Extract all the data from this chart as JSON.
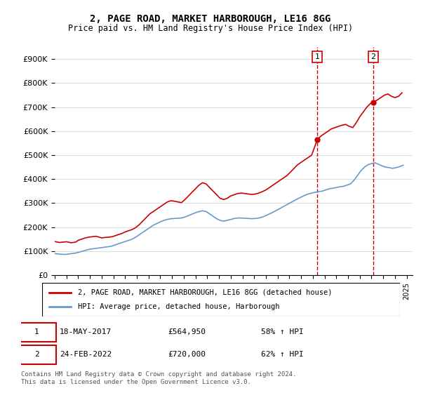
{
  "title": "2, PAGE ROAD, MARKET HARBOROUGH, LE16 8GG",
  "subtitle": "Price paid vs. HM Land Registry's House Price Index (HPI)",
  "legend_line1": "2, PAGE ROAD, MARKET HARBOROUGH, LE16 8GG (detached house)",
  "legend_line2": "HPI: Average price, detached house, Harborough",
  "footnote": "Contains HM Land Registry data © Crown copyright and database right 2024.\nThis data is licensed under the Open Government Licence v3.0.",
  "annotation1_label": "1",
  "annotation1_date": "18-MAY-2017",
  "annotation1_price": "£564,950",
  "annotation1_hpi": "58% ↑ HPI",
  "annotation2_label": "2",
  "annotation2_date": "24-FEB-2022",
  "annotation2_price": "£720,000",
  "annotation2_hpi": "62% ↑ HPI",
  "red_color": "#cc0000",
  "blue_color": "#6699cc",
  "vline_color": "#cc0000",
  "background_color": "#ffffff",
  "grid_color": "#dddddd",
  "ylim": [
    0,
    950000
  ],
  "yticks": [
    0,
    100000,
    200000,
    300000,
    400000,
    500000,
    600000,
    700000,
    800000,
    900000
  ],
  "ytick_labels": [
    "£0",
    "£100K",
    "£200K",
    "£300K",
    "£400K",
    "£500K",
    "£600K",
    "£700K",
    "£800K",
    "£900K"
  ],
  "xlim_start": 1995.0,
  "xlim_end": 2025.5,
  "vline1_x": 2017.38,
  "vline2_x": 2022.15,
  "red_x": [
    1995.0,
    1995.2,
    1995.4,
    1995.6,
    1995.8,
    1996.0,
    1996.2,
    1996.4,
    1996.6,
    1996.8,
    1997.0,
    1997.3,
    1997.6,
    1997.9,
    1998.2,
    1998.5,
    1998.8,
    1999.0,
    1999.3,
    1999.6,
    1999.9,
    2000.2,
    2000.5,
    2000.8,
    2001.0,
    2001.3,
    2001.6,
    2001.9,
    2002.2,
    2002.5,
    2002.8,
    2003.1,
    2003.4,
    2003.7,
    2004.0,
    2004.3,
    2004.6,
    2004.9,
    2005.2,
    2005.5,
    2005.8,
    2006.1,
    2006.4,
    2006.7,
    2007.0,
    2007.3,
    2007.6,
    2007.9,
    2008.2,
    2008.5,
    2008.8,
    2009.1,
    2009.4,
    2009.7,
    2010.0,
    2010.3,
    2010.6,
    2010.9,
    2011.2,
    2011.5,
    2011.8,
    2012.1,
    2012.4,
    2012.7,
    2013.0,
    2013.3,
    2013.6,
    2013.9,
    2014.2,
    2014.5,
    2014.8,
    2015.1,
    2015.4,
    2015.7,
    2016.0,
    2016.3,
    2016.6,
    2016.9,
    2017.38,
    2017.7,
    2018.0,
    2018.3,
    2018.6,
    2018.9,
    2019.2,
    2019.5,
    2019.8,
    2020.1,
    2020.4,
    2020.7,
    2021.0,
    2021.3,
    2021.6,
    2021.9,
    2022.15,
    2022.5,
    2022.8,
    2023.1,
    2023.4,
    2023.7,
    2024.0,
    2024.3,
    2024.6
  ],
  "red_y": [
    140000,
    138000,
    136000,
    137000,
    138000,
    139000,
    137000,
    135000,
    136000,
    138000,
    145000,
    150000,
    155000,
    158000,
    160000,
    162000,
    158000,
    155000,
    157000,
    158000,
    160000,
    165000,
    170000,
    175000,
    180000,
    185000,
    190000,
    198000,
    210000,
    225000,
    240000,
    255000,
    265000,
    275000,
    285000,
    295000,
    305000,
    310000,
    308000,
    305000,
    302000,
    315000,
    330000,
    345000,
    360000,
    375000,
    385000,
    380000,
    365000,
    350000,
    335000,
    320000,
    315000,
    320000,
    330000,
    335000,
    340000,
    342000,
    340000,
    338000,
    336000,
    338000,
    342000,
    348000,
    355000,
    365000,
    375000,
    385000,
    395000,
    405000,
    415000,
    430000,
    445000,
    460000,
    470000,
    480000,
    490000,
    500000,
    564950,
    580000,
    590000,
    600000,
    610000,
    615000,
    620000,
    625000,
    628000,
    620000,
    615000,
    635000,
    660000,
    680000,
    700000,
    715000,
    720000,
    730000,
    740000,
    750000,
    755000,
    745000,
    740000,
    745000,
    760000
  ],
  "blue_x": [
    1995.0,
    1995.3,
    1995.6,
    1995.9,
    1996.2,
    1996.5,
    1996.8,
    1997.1,
    1997.4,
    1997.7,
    1998.0,
    1998.3,
    1998.6,
    1998.9,
    1999.2,
    1999.5,
    1999.8,
    2000.1,
    2000.4,
    2000.7,
    2001.0,
    2001.3,
    2001.6,
    2001.9,
    2002.2,
    2002.5,
    2002.8,
    2003.1,
    2003.4,
    2003.7,
    2004.0,
    2004.3,
    2004.6,
    2004.9,
    2005.2,
    2005.5,
    2005.8,
    2006.1,
    2006.4,
    2006.7,
    2007.0,
    2007.3,
    2007.6,
    2007.9,
    2008.2,
    2008.5,
    2008.8,
    2009.1,
    2009.4,
    2009.7,
    2010.0,
    2010.3,
    2010.6,
    2010.9,
    2011.2,
    2011.5,
    2011.8,
    2012.1,
    2012.4,
    2012.7,
    2013.0,
    2013.3,
    2013.6,
    2013.9,
    2014.2,
    2014.5,
    2014.8,
    2015.1,
    2015.4,
    2015.7,
    2016.0,
    2016.3,
    2016.6,
    2016.9,
    2017.2,
    2017.5,
    2017.8,
    2018.1,
    2018.4,
    2018.7,
    2019.0,
    2019.3,
    2019.6,
    2019.9,
    2020.2,
    2020.5,
    2020.8,
    2021.1,
    2021.4,
    2021.7,
    2022.0,
    2022.3,
    2022.6,
    2022.9,
    2023.2,
    2023.5,
    2023.8,
    2024.1,
    2024.4,
    2024.7
  ],
  "blue_y": [
    90000,
    88000,
    87000,
    86000,
    88000,
    90000,
    92000,
    96000,
    100000,
    104000,
    108000,
    110000,
    112000,
    114000,
    116000,
    118000,
    120000,
    125000,
    130000,
    135000,
    140000,
    145000,
    150000,
    158000,
    168000,
    178000,
    188000,
    198000,
    208000,
    215000,
    222000,
    228000,
    232000,
    235000,
    236000,
    237000,
    238000,
    242000,
    248000,
    254000,
    260000,
    265000,
    268000,
    265000,
    255000,
    245000,
    235000,
    228000,
    225000,
    228000,
    232000,
    236000,
    238000,
    238000,
    237000,
    236000,
    235000,
    236000,
    238000,
    242000,
    248000,
    255000,
    262000,
    270000,
    278000,
    286000,
    294000,
    302000,
    310000,
    318000,
    325000,
    332000,
    338000,
    342000,
    345000,
    348000,
    350000,
    355000,
    360000,
    362000,
    365000,
    368000,
    370000,
    375000,
    380000,
    395000,
    415000,
    435000,
    450000,
    460000,
    465000,
    468000,
    462000,
    455000,
    450000,
    448000,
    445000,
    448000,
    452000,
    458000
  ]
}
